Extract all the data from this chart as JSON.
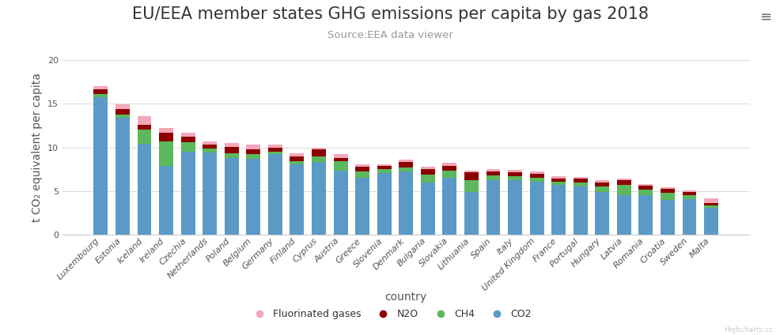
{
  "title": "EU/EEA member states GHG emissions per capita by gas 2018",
  "subtitle": "Source:EEA data viewer",
  "xlabel": "country",
  "ylabel": "t CO₂ equivalent per capita",
  "ylim": [
    0,
    20
  ],
  "yticks": [
    0,
    5,
    10,
    15,
    20
  ],
  "background_color": "#ffffff",
  "plot_bg_color": "#ffffff",
  "grid_color": "#dddddd",
  "categories": [
    "Luxembourg",
    "Estonia",
    "Iceland",
    "Ireland",
    "Czechia",
    "Netherlands",
    "Poland",
    "Belgium",
    "Germany",
    "Finland",
    "Cyprus",
    "Austria",
    "Greece",
    "Slovenia",
    "Denmark",
    "Bulgaria",
    "Slovakia",
    "Lithuania",
    "Spain",
    "Italy",
    "United Kingdom",
    "France",
    "Portugal",
    "Hungary",
    "Latvia",
    "Romania",
    "Croatia",
    "Sweden",
    "Malta"
  ],
  "series": {
    "CO2": {
      "color": "#5b9ac7",
      "values": [
        15.8,
        13.4,
        10.4,
        7.85,
        9.5,
        9.4,
        8.75,
        8.65,
        9.2,
        8.1,
        8.35,
        7.35,
        6.5,
        7.05,
        7.2,
        6.0,
        6.5,
        4.85,
        6.25,
        6.2,
        6.05,
        5.7,
        5.5,
        4.85,
        4.55,
        4.5,
        4.0,
        4.1,
        3.1
      ]
    },
    "CH4": {
      "color": "#5cb85c",
      "values": [
        0.35,
        0.4,
        1.65,
        2.8,
        1.05,
        0.45,
        0.55,
        0.55,
        0.35,
        0.35,
        0.65,
        1.05,
        0.75,
        0.45,
        0.45,
        0.9,
        0.85,
        1.35,
        0.55,
        0.45,
        0.45,
        0.35,
        0.45,
        0.65,
        1.15,
        0.65,
        0.8,
        0.45,
        0.25
      ]
    },
    "N2O": {
      "color": "#8b0000",
      "values": [
        0.55,
        0.65,
        0.55,
        1.0,
        0.7,
        0.5,
        0.75,
        0.6,
        0.45,
        0.55,
        0.75,
        0.4,
        0.55,
        0.4,
        0.65,
        0.65,
        0.55,
        0.95,
        0.45,
        0.5,
        0.45,
        0.35,
        0.45,
        0.45,
        0.55,
        0.45,
        0.45,
        0.35,
        0.25
      ]
    },
    "Fluorinated gases": {
      "color": "#f4a7b9",
      "values": [
        0.35,
        0.5,
        1.0,
        0.55,
        0.4,
        0.35,
        0.45,
        0.5,
        0.35,
        0.3,
        0.2,
        0.4,
        0.3,
        0.2,
        0.3,
        0.25,
        0.3,
        0.2,
        0.3,
        0.3,
        0.25,
        0.3,
        0.2,
        0.3,
        0.2,
        0.2,
        0.2,
        0.2,
        0.55
      ]
    }
  },
  "legend_order": [
    "Fluorinated gases",
    "N2O",
    "CH4",
    "CO2"
  ],
  "title_fontsize": 15,
  "subtitle_fontsize": 9.5,
  "axis_label_fontsize": 10,
  "tick_fontsize": 8,
  "bar_width": 0.65,
  "watermark": "Highcharts.cc"
}
